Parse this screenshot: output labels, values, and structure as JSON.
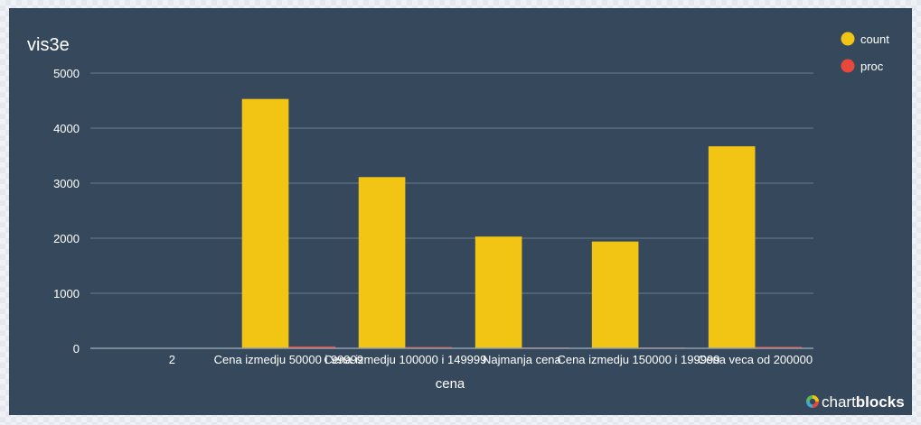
{
  "chart_data": {
    "type": "bar",
    "title": "vis3e",
    "xlabel": "cena",
    "ylabel": "",
    "ylim": [
      0,
      5000
    ],
    "yticks": [
      0,
      1000,
      2000,
      3000,
      4000,
      5000
    ],
    "grid": true,
    "legend_position": "top-right",
    "categories": [
      "2",
      "Cena izmedju 50000 i 99999",
      "Cena izmedju 100000 i 149999",
      "Najmanja cena",
      "Cena izmedju 150000 i 199999",
      "Cena veca od 200000"
    ],
    "series": [
      {
        "name": "count",
        "color": "#f2c413",
        "values": [
          0,
          4530,
          3110,
          2030,
          1940,
          3670
        ]
      },
      {
        "name": "proc",
        "color": "#e8473b",
        "values": [
          0,
          35,
          24,
          16,
          15,
          28
        ]
      }
    ]
  },
  "branding": {
    "logo_prefix": "chart",
    "logo_suffix": "blocks",
    "logo_icon": "chartblocks-logo-icon"
  }
}
